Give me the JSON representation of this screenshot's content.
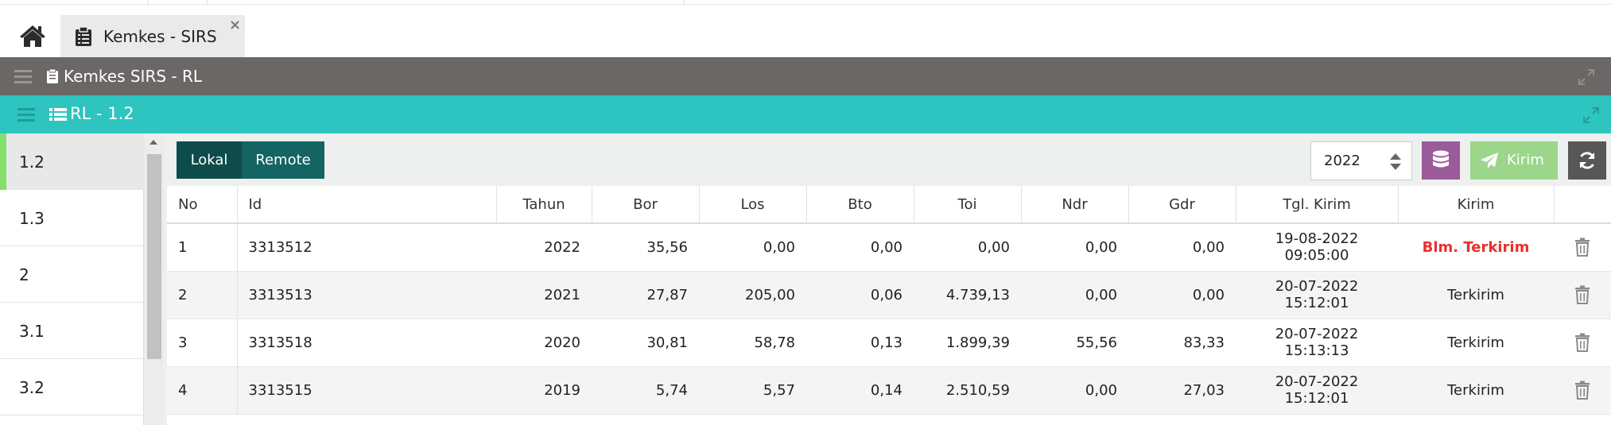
{
  "tabs": {
    "home_icon": "home-icon",
    "active_tab": {
      "label": "Kemkes - SIRS",
      "icon": "clipboard-icon",
      "close": "×"
    }
  },
  "panel": {
    "title": "Kemkes SIRS - RL"
  },
  "subpanel": {
    "title": "RL - 1.2"
  },
  "sidebar": {
    "items": [
      {
        "label": "1.2",
        "active": true
      },
      {
        "label": "1.3"
      },
      {
        "label": "2"
      },
      {
        "label": "3.1"
      },
      {
        "label": "3.2"
      }
    ]
  },
  "toolbar": {
    "lokal_label": "Lokal",
    "remote_label": "Remote",
    "year_value": "2022",
    "kirim_label": "Kirim"
  },
  "table": {
    "headers": [
      "No",
      "Id",
      "Tahun",
      "Bor",
      "Los",
      "Bto",
      "Toi",
      "Ndr",
      "Gdr",
      "Tgl. Kirim",
      "Kirim"
    ],
    "rows": [
      {
        "no": "1",
        "id": "3313512",
        "tahun": "2022",
        "bor": "35,56",
        "los": "0,00",
        "bto": "0,00",
        "toi": "0,00",
        "ndr": "0,00",
        "gdr": "0,00",
        "tgl": "19-08-2022 09:05:00",
        "kirim": "Blm. Terkirim"
      },
      {
        "no": "2",
        "id": "3313513",
        "tahun": "2021",
        "bor": "27,87",
        "los": "205,00",
        "bto": "0,06",
        "toi": "4.739,13",
        "ndr": "0,00",
        "gdr": "0,00",
        "tgl": "20-07-2022 15:12:01",
        "kirim": "Terkirim"
      },
      {
        "no": "3",
        "id": "3313518",
        "tahun": "2020",
        "bor": "30,81",
        "los": "58,78",
        "bto": "0,13",
        "toi": "1.899,39",
        "ndr": "55,56",
        "gdr": "83,33",
        "tgl": "20-07-2022 15:13:13",
        "kirim": "Terkirim"
      },
      {
        "no": "4",
        "id": "3313515",
        "tahun": "2019",
        "bor": "5,74",
        "los": "5,57",
        "bto": "0,14",
        "toi": "2.510,59",
        "ndr": "0,00",
        "gdr": "27,03",
        "tgl": "20-07-2022 15:12:01",
        "kirim": "Terkirim"
      }
    ]
  },
  "colors": {
    "panel_header": "#6b6766",
    "subpanel_header": "#2ec4c0",
    "lokal_button": "#0e4b4b",
    "remote_button": "#146463",
    "db_button": "#9b5b9b",
    "kirim_button": "#9bd68a",
    "refresh_button": "#575757",
    "active_indicator": "#85e06b",
    "unsent_status": "#e8302e"
  }
}
